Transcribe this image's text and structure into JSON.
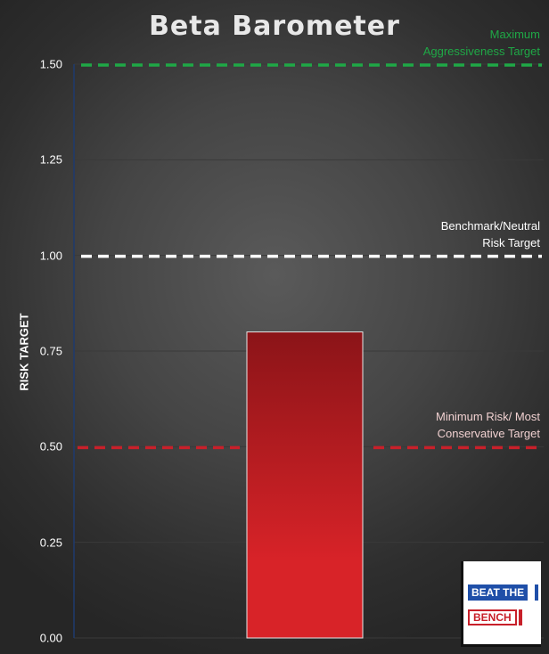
{
  "chart_data": {
    "type": "bar",
    "title": "Beta Barometer",
    "ylabel": "RISK TARGET",
    "xlabel": "",
    "ylim": [
      0,
      1.5
    ],
    "yticks": [
      "0.00",
      "0.25",
      "0.50",
      "0.75",
      "1.00",
      "1.25",
      "1.50"
    ],
    "ytick_values": [
      0,
      0.25,
      0.5,
      0.75,
      1.0,
      1.25,
      1.5
    ],
    "categories": [
      ""
    ],
    "values": [
      0.8
    ],
    "bar_color_top": "#8b1418",
    "bar_color_bottom": "#d82328",
    "grid": true,
    "reference_lines": [
      {
        "value": 1.5,
        "label_lines": [
          "Maximum",
          "Aggressiveness Target"
        ],
        "color": "#1fa846",
        "style": "dashed"
      },
      {
        "value": 1.0,
        "label_lines": [
          "Benchmark/Neutral",
          "Risk Target"
        ],
        "color": "#ffffff",
        "style": "dashed"
      },
      {
        "value": 0.5,
        "label_lines": [
          "Minimum Risk/ Most",
          "Conservative Target"
        ],
        "color": "#c8202a",
        "style": "dashed"
      }
    ]
  },
  "logo": {
    "line1": "BEAT THE",
    "line2": "BENCH",
    "blue": "#1f4fa8",
    "red": "#c8202a"
  }
}
